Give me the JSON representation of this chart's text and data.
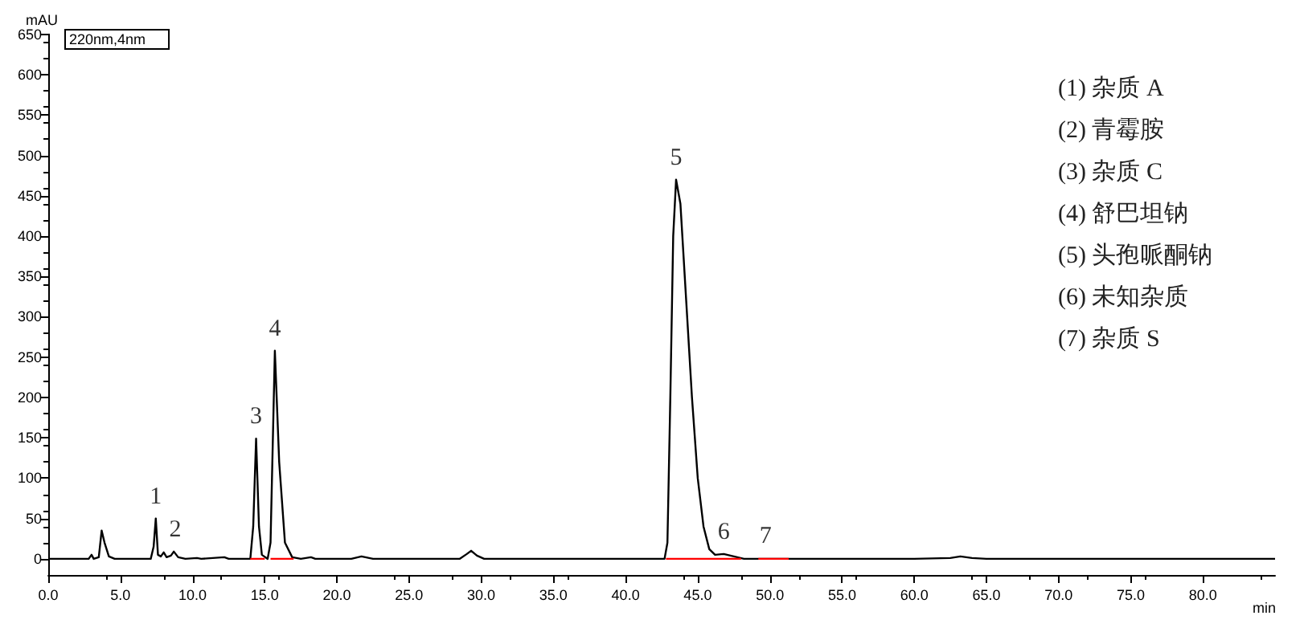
{
  "chart_data": {
    "type": "line",
    "xlabel": "min",
    "ylabel": "mAU",
    "xlim": [
      0,
      85
    ],
    "ylim": [
      -20,
      650
    ],
    "xticks": [
      {
        "value": 0,
        "label": "0.0"
      },
      {
        "value": 5,
        "label": "5.0"
      },
      {
        "value": 10,
        "label": "10.0"
      },
      {
        "value": 15,
        "label": "15.0"
      },
      {
        "value": 20,
        "label": "20.0"
      },
      {
        "value": 25,
        "label": "25.0"
      },
      {
        "value": 30,
        "label": "30.0"
      },
      {
        "value": 35,
        "label": "35.0"
      },
      {
        "value": 40,
        "label": "40.0"
      },
      {
        "value": 45,
        "label": "45.0"
      },
      {
        "value": 50,
        "label": "50.0"
      },
      {
        "value": 55,
        "label": "55.0"
      },
      {
        "value": 60,
        "label": "60.0"
      },
      {
        "value": 65,
        "label": "65.0"
      },
      {
        "value": 70,
        "label": "70.0"
      },
      {
        "value": 75,
        "label": "75.0"
      },
      {
        "value": 80,
        "label": "80.0"
      }
    ],
    "yticks": [
      0,
      50,
      100,
      150,
      200,
      250,
      300,
      350,
      400,
      450,
      500,
      550,
      600,
      650
    ],
    "grid": false,
    "marker": "none",
    "line_style": "solid",
    "series": [
      {
        "color": "#000000",
        "x": [
          0,
          2.8,
          3.0,
          3.15,
          3.5,
          3.7,
          3.9,
          4.2,
          4.6,
          7.1,
          7.3,
          7.45,
          7.6,
          7.8,
          8.0,
          8.2,
          8.5,
          8.7,
          9.0,
          9.5,
          10.3,
          10.6,
          12.2,
          12.5,
          14.0,
          14.2,
          14.4,
          14.6,
          14.8,
          15.2,
          15.4,
          15.7,
          16.0,
          16.4,
          16.9,
          17.5,
          18.2,
          18.5,
          21.0,
          21.7,
          22.5,
          28.5,
          29.0,
          29.3,
          29.7,
          30.2,
          42.7,
          42.9,
          43.1,
          43.3,
          43.5,
          43.8,
          44.2,
          44.6,
          45.0,
          45.4,
          45.8,
          46.2,
          46.8,
          47.5,
          48.2,
          60,
          62.5,
          63.2,
          64,
          65,
          85
        ],
        "values": [
          0,
          0,
          5,
          0,
          2,
          35,
          20,
          3,
          0,
          0,
          15,
          50,
          5,
          3,
          8,
          2,
          4,
          9,
          2,
          0,
          1,
          0,
          2,
          0,
          0,
          40,
          149,
          40,
          5,
          0,
          20,
          258,
          120,
          20,
          2,
          0,
          2,
          0,
          0,
          3,
          0,
          0,
          6,
          10,
          4,
          0,
          0,
          20,
          200,
          400,
          470,
          440,
          320,
          200,
          100,
          40,
          12,
          5,
          6,
          3,
          0,
          0,
          1,
          3,
          1,
          0,
          0
        ]
      },
      {
        "color": "#ff0000",
        "x": [
          14.0,
          15.0,
          15.05,
          15.4,
          17.0,
          17.05,
          42.8,
          46.3,
          48.0,
          48.05,
          49.2,
          51.3
        ],
        "values": [
          0,
          0,
          null,
          0,
          0,
          null,
          0,
          0,
          0,
          null,
          0,
          0
        ]
      }
    ],
    "annotations": [
      "220nm,4nm",
      "(1) 杂质 A",
      "(2) 青霉胺",
      "(3) 杂质 C",
      "(4) 舒巴坦钠",
      "(5) 头孢哌酮钠",
      "(6) 未知杂质",
      "(7) 杂质 S",
      {
        "text": "1",
        "x": 7.45,
        "y": 50
      },
      {
        "text": "2",
        "x": 8.8,
        "y": 9
      },
      {
        "text": "3",
        "x": 14.4,
        "y": 149
      },
      {
        "text": "4",
        "x": 15.7,
        "y": 258
      },
      {
        "text": "5",
        "x": 43.5,
        "y": 470
      },
      {
        "text": "6",
        "x": 46.8,
        "y": 6
      },
      {
        "text": "7",
        "x": 49.7,
        "y": 1
      }
    ]
  }
}
